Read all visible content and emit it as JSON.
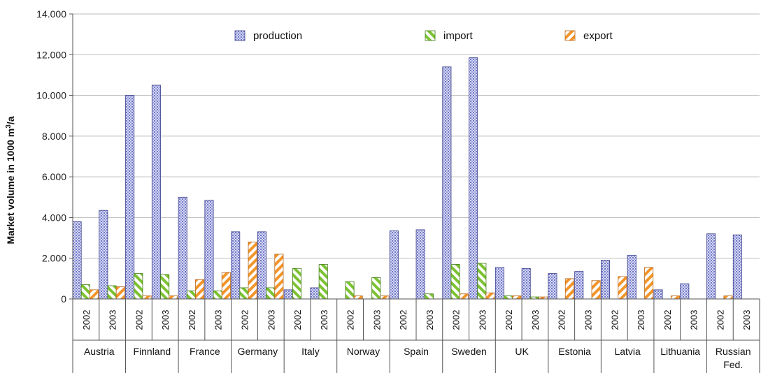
{
  "chart_data": {
    "type": "bar",
    "ylabel": "Market volume in 1000 m",
    "ylabel_sup": "3",
    "ylabel_tail": "/a",
    "ylim": [
      0,
      14000
    ],
    "yticks": [
      "0",
      "2.000",
      "4.000",
      "6.000",
      "8.000",
      "10.000",
      "12.000",
      "14.000"
    ],
    "legend_position": "top",
    "groups": [
      {
        "country": [
          "Austria"
        ],
        "years": [
          "2002",
          "2003"
        ]
      },
      {
        "country": [
          "Finnland"
        ],
        "years": [
          "2002",
          "2003"
        ]
      },
      {
        "country": [
          "France"
        ],
        "years": [
          "2002",
          "2003"
        ]
      },
      {
        "country": [
          "Germany"
        ],
        "years": [
          "2002",
          "2003"
        ]
      },
      {
        "country": [
          "Italy"
        ],
        "years": [
          "2002",
          "2003"
        ]
      },
      {
        "country": [
          "Norway"
        ],
        "years": [
          "2002",
          "2003"
        ]
      },
      {
        "country": [
          "Spain"
        ],
        "years": [
          "2002",
          "2003"
        ]
      },
      {
        "country": [
          "Sweden"
        ],
        "years": [
          "2002",
          "2003"
        ]
      },
      {
        "country": [
          "UK"
        ],
        "years": [
          "2002",
          "2003"
        ]
      },
      {
        "country": [
          "Estonia"
        ],
        "years": [
          "2002",
          "2003"
        ]
      },
      {
        "country": [
          "Latvia"
        ],
        "years": [
          "2002",
          "2003"
        ]
      },
      {
        "country": [
          "Lithuania"
        ],
        "years": [
          "2002",
          "2003"
        ]
      },
      {
        "country": [
          "Russian",
          "Fed."
        ],
        "years": [
          "2002",
          "2003"
        ]
      }
    ],
    "series": [
      {
        "name": "production",
        "color": "#b9bde6",
        "values": [
          3800,
          4350,
          10000,
          10500,
          5000,
          4850,
          3300,
          3300,
          450,
          550,
          0,
          0,
          3350,
          3400,
          11400,
          11850,
          1550,
          1500,
          1250,
          1350,
          1900,
          2150,
          450,
          750,
          3200,
          3150
        ]
      },
      {
        "name": "import",
        "color": "#8ccc3c",
        "values": [
          700,
          650,
          1250,
          1200,
          400,
          400,
          550,
          550,
          1500,
          1700,
          850,
          1050,
          0,
          250,
          1700,
          1750,
          150,
          100,
          0,
          0,
          0,
          0,
          0,
          0,
          0,
          0
        ]
      },
      {
        "name": "export",
        "color": "#f29a2e",
        "values": [
          450,
          600,
          150,
          150,
          950,
          1300,
          2800,
          2200,
          0,
          0,
          150,
          150,
          0,
          0,
          250,
          300,
          150,
          100,
          1000,
          900,
          1100,
          1550,
          150,
          0,
          150,
          0
        ]
      }
    ]
  }
}
